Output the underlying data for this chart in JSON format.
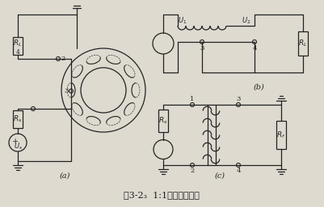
{
  "title": "图3-2₃  1:1传输线变压器",
  "bg_color": "#dedad0",
  "fig_width": 4.01,
  "fig_height": 2.57,
  "dpi": 100,
  "title_fontsize": 8,
  "label_a": "(a)",
  "label_b": "(b)",
  "label_c": "(c)"
}
